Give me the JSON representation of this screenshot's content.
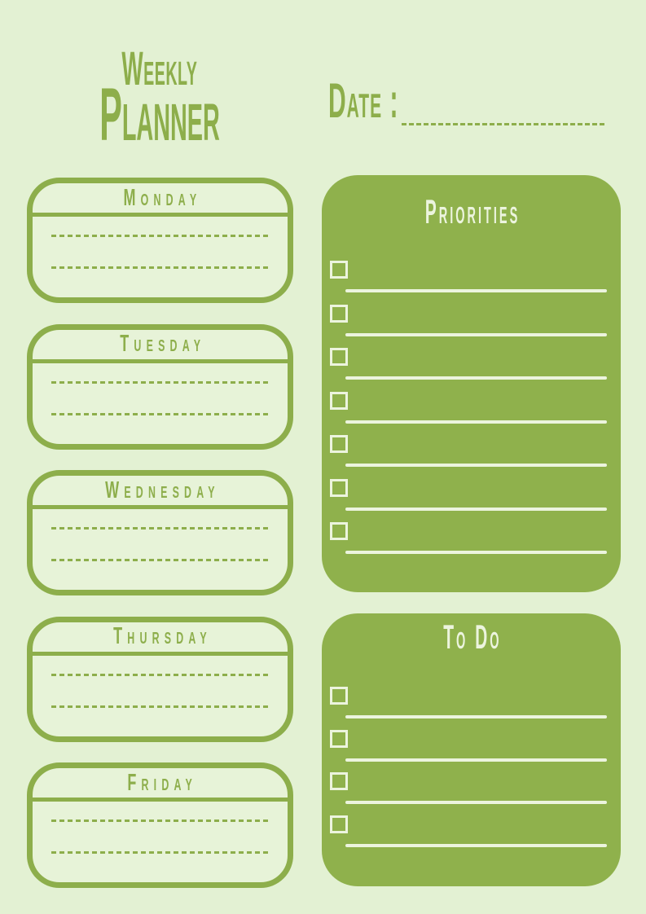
{
  "colors": {
    "page_bg": "#e3f1d3",
    "green": "#8dae4b",
    "panel_green": "#8fb14c",
    "card_bg": "#e7f3d8",
    "ink_white": "#ecf4de"
  },
  "header": {
    "title_line1": "Weekly",
    "title_line2": "Planner",
    "date_label": "Date :"
  },
  "days": [
    {
      "label": "Monday",
      "note_lines": 2
    },
    {
      "label": "Tuesday",
      "note_lines": 2
    },
    {
      "label": "Wednesday",
      "note_lines": 2
    },
    {
      "label": "Thursday",
      "note_lines": 2
    },
    {
      "label": "Friday",
      "note_lines": 2
    }
  ],
  "panels": [
    {
      "title": "Priorities",
      "checklist_rows": 7
    },
    {
      "title": "To Do",
      "checklist_rows": 4
    }
  ]
}
